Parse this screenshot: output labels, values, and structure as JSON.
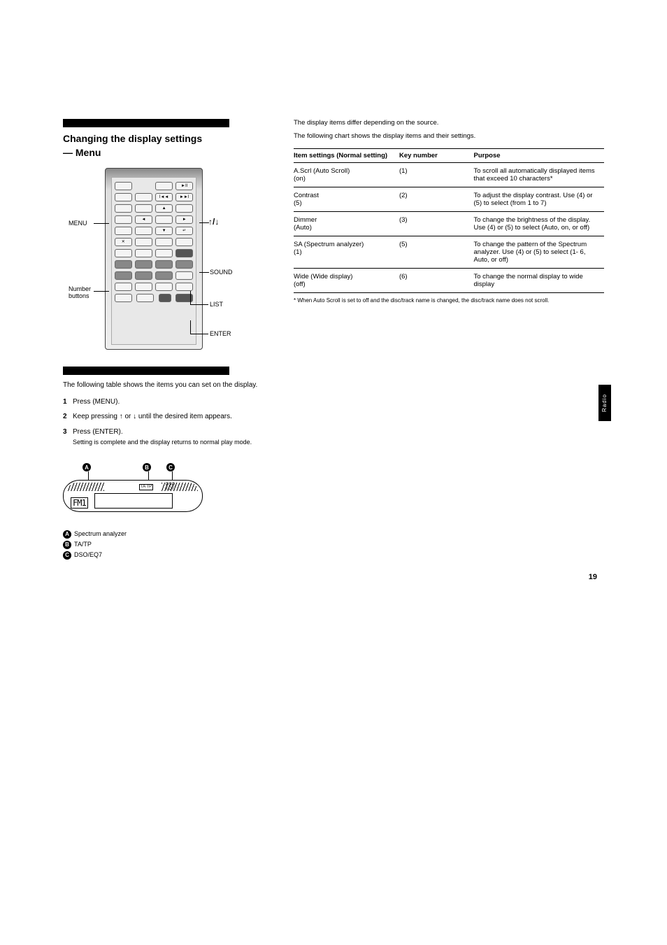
{
  "page_number": "19",
  "side_tab": "Radio",
  "section1": {
    "title": "Changing the display settings",
    "subtitle": "— Menu",
    "intro": "The following table shows the items you can set on the display.",
    "steps": [
      {
        "num": "1",
        "text": "Press (MENU)."
      },
      {
        "num": "2",
        "text": "Keep pressing ↑ or ↓ until the desired item appears."
      },
      {
        "num": "3",
        "text": "Press (ENTER).",
        "detail": "Setting is complete and the display returns to normal play mode."
      }
    ]
  },
  "remote_labels": {
    "menu": "MENU",
    "number": "Number buttons",
    "updown": "↑/↓",
    "sound": "SOUND",
    "list": "LIST",
    "enter": "ENTER"
  },
  "section2": {
    "head": "The display items differ depending on the source.",
    "note": "The following chart shows the display items and their settings."
  },
  "table": {
    "header": [
      "Item settings (Normal setting)",
      "Key number",
      "Purpose"
    ],
    "rows": [
      {
        "c1": "A.Scrl (Auto Scroll)\n(on)",
        "c2": "(1)",
        "c3": "To scroll all automatically displayed items that exceed 10 characters*"
      },
      {
        "c1": "Contrast\n(5)",
        "c2": "(2)",
        "c3": "To adjust the display contrast. Use (4) or (5) to select (from 1 to 7)"
      },
      {
        "c1": "Dimmer\n(Auto)",
        "c2": "(3)",
        "c3": "To change the brightness of the display. Use (4) or (5) to select (Auto, on, or off)"
      },
      {
        "c1": "SA (Spectrum analyzer)\n(1)",
        "c2": "(5)",
        "c3": "To change the pattern of the Spectrum analyzer. Use (4) or (5) to select (1- 6, Auto, or off)"
      },
      {
        "c1": "Wide (Wide display)\n(off)",
        "c2": "(6)",
        "c3": "To change the normal display to wide display"
      }
    ],
    "footnote": "* When Auto Scroll is set to off and the disc/track name is changed, the disc/track name does not scroll."
  },
  "display_unit": {
    "markers": {
      "A": "A",
      "B": "B",
      "C": "C"
    },
    "ta_tp_box": "TA  TP",
    "dso": "DSO",
    "eq7": "EQ7",
    "fm": "FM1",
    "key": [
      {
        "badge": "A",
        "text": "Spectrum analyzer"
      },
      {
        "badge": "B",
        "text": "TA/TP"
      },
      {
        "badge": "C",
        "text": "DSO/EQ7"
      }
    ]
  },
  "colors": {
    "black": "#000000",
    "white": "#ffffff"
  }
}
